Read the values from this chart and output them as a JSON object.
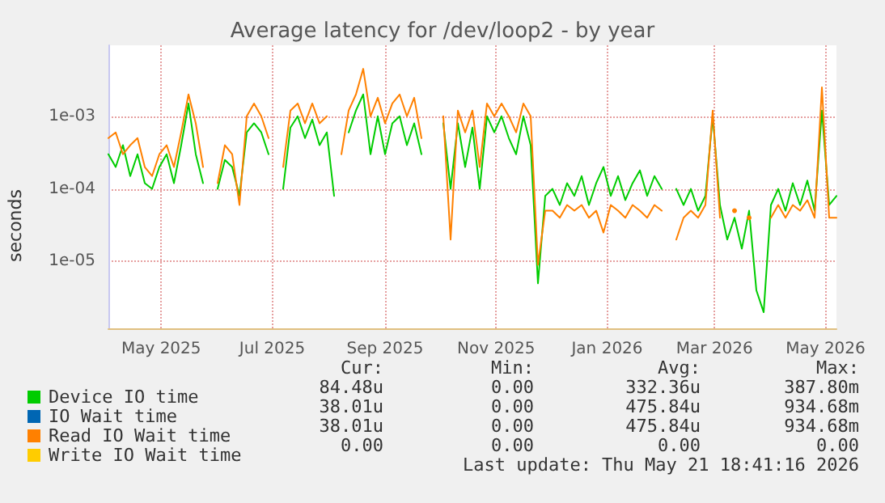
{
  "chart_data": {
    "type": "line",
    "title": "Average latency for /dev/loop2 - by year",
    "ylabel": "seconds",
    "log": "y",
    "grid": true,
    "legend": "bottom",
    "marker": "none",
    "line_style": "solid",
    "xlim": [
      "2025-04-16",
      "2026-05-21"
    ],
    "xticks": [
      {
        "value": "2025-05-15",
        "label": "May 2025"
      },
      {
        "value": "2025-07-15",
        "label": "Jul 2025"
      },
      {
        "value": "2025-09-15",
        "label": "Sep 2025"
      },
      {
        "value": "2025-11-15",
        "label": "Nov 2025"
      },
      {
        "value": "2026-01-15",
        "label": "Jan 2026"
      },
      {
        "value": "2026-03-15",
        "label": "Mar 2026"
      },
      {
        "value": "2026-05-15",
        "label": "May 2026"
      }
    ],
    "ylim": [
      1.2e-06,
      0.0095
    ],
    "yticks": [
      {
        "value": 1e-05,
        "label": "1e-05"
      },
      {
        "value": 0.0001,
        "label": "1e-04"
      },
      {
        "value": 0.001,
        "label": "1e-03"
      }
    ],
    "x": [
      "2025-04-16",
      "2025-04-20",
      "2025-04-24",
      "2025-04-28",
      "2025-05-02",
      "2025-05-06",
      "2025-05-10",
      "2025-05-14",
      "2025-05-18",
      "2025-05-22",
      "2025-05-26",
      "2025-05-30",
      "2025-06-03",
      "2025-06-07",
      "2025-06-11",
      "2025-06-15",
      "2025-06-19",
      "2025-06-23",
      "2025-06-27",
      "2025-07-01",
      "2025-07-05",
      "2025-07-09",
      "2025-07-13",
      "2025-07-17",
      "2025-07-21",
      "2025-07-25",
      "2025-07-29",
      "2025-08-02",
      "2025-08-06",
      "2025-08-10",
      "2025-08-14",
      "2025-08-18",
      "2025-08-22",
      "2025-08-26",
      "2025-08-30",
      "2025-09-03",
      "2025-09-07",
      "2025-09-11",
      "2025-09-15",
      "2025-09-19",
      "2025-09-23",
      "2025-09-27",
      "2025-10-01",
      "2025-10-05",
      "2025-10-09",
      "2025-10-13",
      "2025-10-17",
      "2025-10-21",
      "2025-10-25",
      "2025-10-29",
      "2025-11-02",
      "2025-11-06",
      "2025-11-10",
      "2025-11-14",
      "2025-11-18",
      "2025-11-22",
      "2025-11-26",
      "2025-11-30",
      "2025-12-04",
      "2025-12-08",
      "2025-12-12",
      "2025-12-16",
      "2025-12-20",
      "2025-12-24",
      "2025-12-28",
      "2026-01-01",
      "2026-01-05",
      "2026-01-09",
      "2026-01-13",
      "2026-01-17",
      "2026-01-21",
      "2026-01-25",
      "2026-01-29",
      "2026-02-02",
      "2026-02-06",
      "2026-02-10",
      "2026-02-14",
      "2026-02-18",
      "2026-02-22",
      "2026-02-26",
      "2026-03-02",
      "2026-03-06",
      "2026-03-10",
      "2026-03-14",
      "2026-03-18",
      "2026-03-22",
      "2026-03-26",
      "2026-03-30",
      "2026-04-03",
      "2026-04-07",
      "2026-04-11",
      "2026-04-15",
      "2026-04-19",
      "2026-04-23",
      "2026-04-27",
      "2026-05-01",
      "2026-05-05",
      "2026-05-09",
      "2026-05-13",
      "2026-05-17",
      "2026-05-21"
    ],
    "series": [
      {
        "name": "Device IO time",
        "color": "#00cc00",
        "values": [
          0.0003,
          0.0002,
          0.0004,
          0.00015,
          0.0003,
          0.00012,
          0.0001,
          0.0002,
          0.0003,
          0.00012,
          0.0004,
          0.0015,
          0.0003,
          0.00012,
          null,
          0.0001,
          0.00025,
          0.0002,
          8e-05,
          0.0006,
          0.0008,
          0.0006,
          0.0003,
          null,
          0.0001,
          0.0007,
          0.001,
          0.0005,
          0.0009,
          0.0004,
          0.0006,
          8e-05,
          null,
          0.0006,
          0.0012,
          0.002,
          0.0003,
          0.001,
          0.0003,
          0.0008,
          0.001,
          0.0004,
          0.0008,
          0.0003,
          null,
          null,
          0.0008,
          0.0001,
          0.0008,
          0.0002,
          0.0007,
          0.0001,
          0.001,
          0.0006,
          0.001,
          0.0005,
          0.0003,
          0.001,
          0.0004,
          5e-06,
          8e-05,
          0.0001,
          6e-05,
          0.00012,
          8e-05,
          0.00015,
          6e-05,
          0.00012,
          0.0002,
          8e-05,
          0.00015,
          7e-05,
          0.00012,
          0.00018,
          8e-05,
          0.00015,
          0.0001,
          null,
          0.0001,
          6e-05,
          0.0001,
          5e-05,
          8e-05,
          0.001,
          6e-05,
          2e-05,
          4e-05,
          1.5e-05,
          5e-05,
          4e-06,
          2e-06,
          6e-05,
          0.0001,
          5e-05,
          0.00012,
          6e-05,
          0.00013,
          5e-05,
          0.0012,
          6e-05,
          8e-05
        ]
      },
      {
        "name": "IO Wait time",
        "color": "#0066b3",
        "values": [
          null,
          null,
          null,
          null,
          null,
          null,
          null,
          null,
          null,
          null,
          null,
          null,
          null,
          null,
          null,
          null,
          null,
          null,
          null,
          null,
          null,
          null,
          null,
          null,
          null,
          null,
          null,
          null,
          null,
          null,
          null,
          null,
          null,
          null,
          null,
          null,
          null,
          null,
          null,
          null,
          null,
          null,
          null,
          null,
          null,
          null,
          null,
          null,
          null,
          null,
          null,
          null,
          null,
          null,
          null,
          null,
          null,
          null,
          null,
          null,
          null,
          null,
          null,
          null,
          null,
          null,
          null,
          null,
          null,
          null,
          null,
          null,
          null,
          null,
          null,
          null,
          null,
          null,
          null,
          null,
          null,
          null,
          null,
          null,
          null,
          null,
          null,
          null,
          null,
          null,
          null,
          null,
          null,
          null,
          null,
          null,
          null,
          null,
          null,
          null,
          null
        ]
      },
      {
        "name": "Read IO Wait time",
        "color": "#ff8000",
        "values": [
          0.0005,
          0.0006,
          0.0003,
          0.0004,
          0.0005,
          0.0002,
          0.00015,
          0.0003,
          0.0004,
          0.0002,
          0.0006,
          0.002,
          0.0008,
          0.0002,
          null,
          0.00012,
          0.0004,
          0.0003,
          6e-05,
          0.001,
          0.0015,
          0.001,
          0.0005,
          null,
          0.0002,
          0.0012,
          0.0015,
          0.0008,
          0.0015,
          0.0008,
          0.001,
          null,
          0.0003,
          0.0012,
          0.002,
          0.0045,
          0.001,
          0.0018,
          0.0008,
          0.0015,
          0.002,
          0.001,
          0.0018,
          0.0005,
          null,
          null,
          0.001,
          2e-05,
          0.0012,
          0.0006,
          0.0012,
          0.0002,
          0.0015,
          0.001,
          0.0015,
          0.001,
          0.0006,
          0.0015,
          0.001,
          9e-06,
          5e-05,
          5e-05,
          4e-05,
          6e-05,
          5e-05,
          6e-05,
          4e-05,
          5e-05,
          2.5e-05,
          6e-05,
          5e-05,
          4e-05,
          6e-05,
          5e-05,
          4e-05,
          6e-05,
          5e-05,
          null,
          2e-05,
          4e-05,
          5e-05,
          4e-05,
          6e-05,
          0.0012,
          4e-05,
          null,
          5e-05,
          null,
          4e-05,
          null,
          null,
          4e-05,
          6e-05,
          4e-05,
          6e-05,
          5e-05,
          7e-05,
          4e-05,
          0.0025,
          4e-05,
          4e-05
        ]
      },
      {
        "name": "Write IO Wait time",
        "color": "#ffcc00",
        "values": [
          null,
          null,
          null,
          null,
          null,
          null,
          null,
          null,
          null,
          null,
          null,
          null,
          null,
          null,
          null,
          null,
          null,
          null,
          null,
          null,
          null,
          null,
          null,
          null,
          null,
          null,
          null,
          null,
          null,
          null,
          null,
          null,
          null,
          null,
          null,
          null,
          null,
          null,
          null,
          null,
          null,
          null,
          null,
          null,
          null,
          null,
          null,
          null,
          null,
          null,
          null,
          null,
          null,
          null,
          null,
          null,
          null,
          null,
          null,
          null,
          null,
          null,
          null,
          null,
          null,
          null,
          null,
          null,
          null,
          null,
          null,
          null,
          null,
          null,
          null,
          null,
          null,
          null,
          null,
          null,
          null,
          null,
          null,
          null,
          null,
          null,
          null,
          null,
          null,
          null,
          null,
          null,
          null,
          null,
          null,
          null,
          null,
          null,
          null,
          null,
          null
        ]
      }
    ],
    "annotations": [
      "Cur:",
      "Min:",
      "Avg:",
      "Max:",
      "84.48u",
      "0.00",
      "332.36u",
      "387.80m",
      "38.01u",
      "0.00",
      "475.84u",
      "934.68m",
      "38.01u",
      "0.00",
      "475.84u",
      "934.68m",
      "0.00",
      "0.00",
      "0.00",
      "0.00",
      "Last update: Thu May 21 18:41:16 2026"
    ]
  }
}
